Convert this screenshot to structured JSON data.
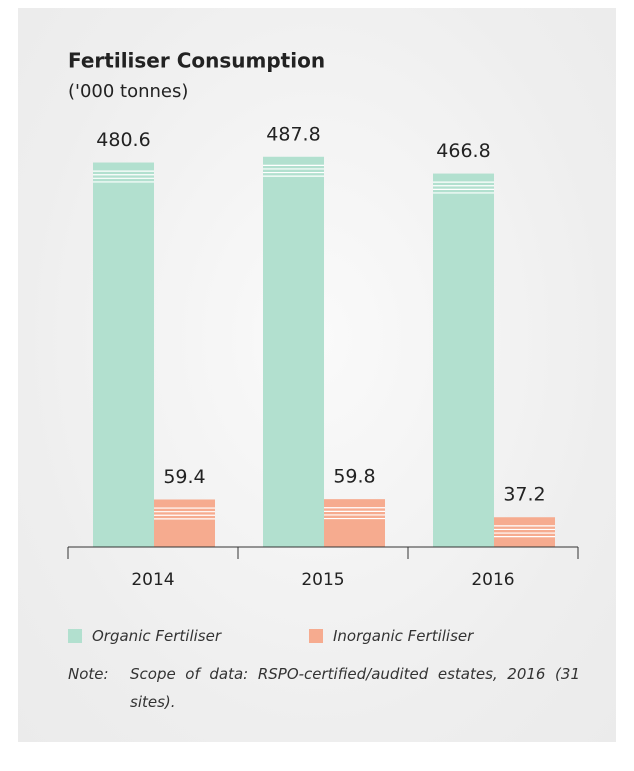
{
  "chart_data": {
    "type": "bar",
    "title": "Fertiliser Consumption",
    "subtitle": "('000 tonnes)",
    "categories": [
      "2014",
      "2015",
      "2016"
    ],
    "series": [
      {
        "name": "Organic Fertiliser",
        "color": "#b2e0cf",
        "values": [
          480.6,
          487.8,
          466.8
        ]
      },
      {
        "name": "Inorganic Fertiliser",
        "color": "#f6ab8f",
        "values": [
          59.4,
          59.8,
          37.2
        ]
      }
    ],
    "ylim": [
      0,
      500
    ],
    "note_label": "Note:",
    "note": "Scope of data: RSPO-certified/audited estates, 2016 (31 sites)."
  }
}
